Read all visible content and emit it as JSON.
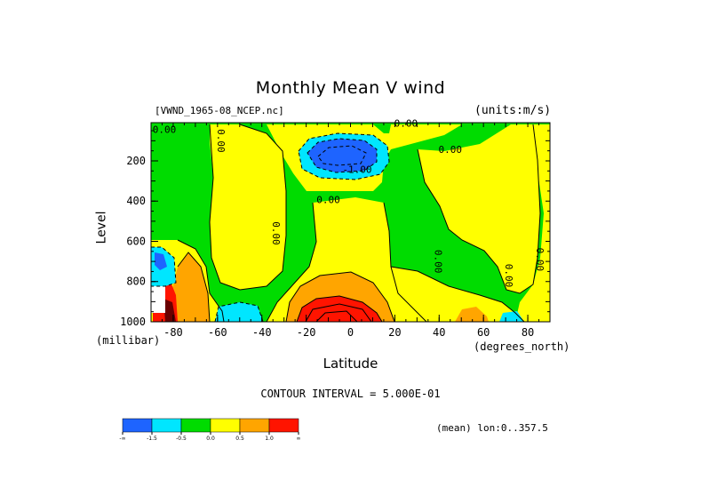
{
  "chart_data": {
    "type": "heatmap",
    "title": "Monthly Mean V wind",
    "dataset": "[VWND_1965-08_NCEP.nc]",
    "units": "(units:m/s)",
    "ylabel": "Level",
    "yunits": "(millibar)",
    "xlabel": "Latitude",
    "xunits": "(degrees_north)",
    "xlim": [
      -90,
      90
    ],
    "ylim": [
      1000,
      10
    ],
    "x_ticks": [
      -80,
      -60,
      -40,
      -20,
      0,
      20,
      40,
      60,
      80
    ],
    "y_ticks": [
      200,
      400,
      600,
      800,
      1000
    ],
    "contour_interval": "CONTOUR INTERVAL = 5.000E-01",
    "subset": "(mean) lon:0..357.5",
    "colorbar": {
      "levels": [
        "-∞",
        "-1.5",
        "-0.5",
        "0.0",
        "0.5",
        "1.0",
        "∞"
      ],
      "colors": [
        "#1e64ff",
        "#00e6ff",
        "#00dc00",
        "#ffff00",
        "#ffa500",
        "#ff1400"
      ]
    },
    "contour_labels": [
      "0.00",
      "0.00",
      "0.00",
      "-1.00",
      "0.00",
      "0.00",
      "0.00",
      "0.00",
      "0.00",
      "0.00"
    ],
    "colors": {
      "strong_negative": "#1e64ff",
      "negative": "#00e6ff",
      "near_zero_negative": "#00dc00",
      "near_zero_positive": "#ffff00",
      "positive": "#ffa500",
      "strong_positive": "#ff1400"
    }
  }
}
